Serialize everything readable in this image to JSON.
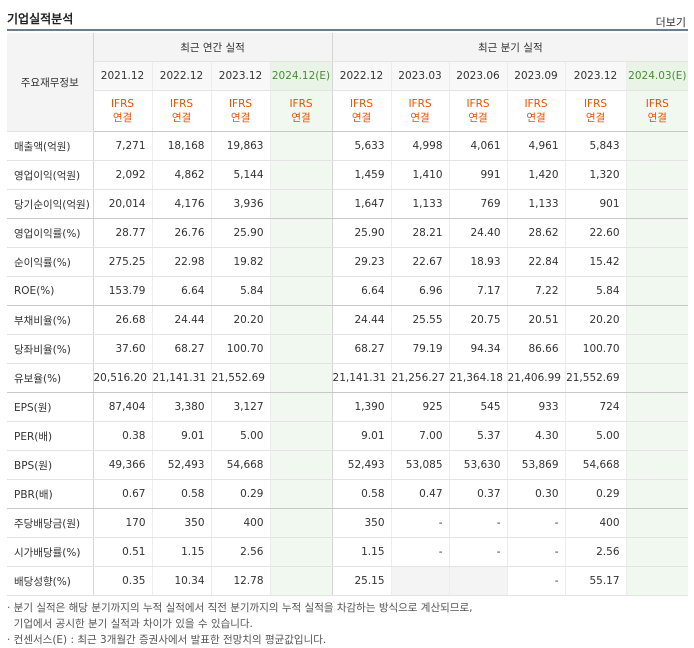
{
  "title": "기업실적분석",
  "more": "더보기",
  "header": {
    "row_label": "주요재무정보",
    "annual_group": "최근 연간 실적",
    "quarter_group": "최근 분기 실적",
    "annual_periods": [
      "2021.12",
      "2022.12",
      "2023.12",
      "2024.12(E)"
    ],
    "quarter_periods": [
      "2022.12",
      "2023.03",
      "2023.06",
      "2023.09",
      "2023.12",
      "2024.03(E)"
    ],
    "ifrs_top": "IFRS",
    "ifrs_bottom": "연결"
  },
  "rows": [
    {
      "label": "매출액(억원)",
      "annual": [
        "7,271",
        "18,168",
        "19,863",
        ""
      ],
      "quarter": [
        "5,633",
        "4,998",
        "4,061",
        "4,961",
        "5,843",
        ""
      ]
    },
    {
      "label": "영업이익(억원)",
      "annual": [
        "2,092",
        "4,862",
        "5,144",
        ""
      ],
      "quarter": [
        "1,459",
        "1,410",
        "991",
        "1,420",
        "1,320",
        ""
      ]
    },
    {
      "label": "당기순이익(억원)",
      "annual": [
        "20,014",
        "4,176",
        "3,936",
        ""
      ],
      "quarter": [
        "1,647",
        "1,133",
        "769",
        "1,133",
        "901",
        ""
      ]
    },
    {
      "label": "영업이익률(%)",
      "annual": [
        "28.77",
        "26.76",
        "25.90",
        ""
      ],
      "quarter": [
        "25.90",
        "28.21",
        "24.40",
        "28.62",
        "22.60",
        ""
      ]
    },
    {
      "label": "순이익률(%)",
      "annual": [
        "275.25",
        "22.98",
        "19.82",
        ""
      ],
      "quarter": [
        "29.23",
        "22.67",
        "18.93",
        "22.84",
        "15.42",
        ""
      ]
    },
    {
      "label": "ROE(%)",
      "annual": [
        "153.79",
        "6.64",
        "5.84",
        ""
      ],
      "quarter": [
        "6.64",
        "6.96",
        "7.17",
        "7.22",
        "5.84",
        ""
      ]
    },
    {
      "label": "부채비율(%)",
      "annual": [
        "26.68",
        "24.44",
        "20.20",
        ""
      ],
      "quarter": [
        "24.44",
        "25.55",
        "20.75",
        "20.51",
        "20.20",
        ""
      ]
    },
    {
      "label": "당좌비율(%)",
      "annual": [
        "37.60",
        "68.27",
        "100.70",
        ""
      ],
      "quarter": [
        "68.27",
        "79.19",
        "94.34",
        "86.66",
        "100.70",
        ""
      ]
    },
    {
      "label": "유보율(%)",
      "annual": [
        "20,516.20",
        "21,141.31",
        "21,552.69",
        ""
      ],
      "quarter": [
        "21,141.31",
        "21,256.27",
        "21,364.18",
        "21,406.99",
        "21,552.69",
        ""
      ]
    },
    {
      "label": "EPS(원)",
      "annual": [
        "87,404",
        "3,380",
        "3,127",
        ""
      ],
      "quarter": [
        "1,390",
        "925",
        "545",
        "933",
        "724",
        ""
      ]
    },
    {
      "label": "PER(배)",
      "annual": [
        "0.38",
        "9.01",
        "5.00",
        ""
      ],
      "quarter": [
        "9.01",
        "7.00",
        "5.37",
        "4.30",
        "5.00",
        ""
      ]
    },
    {
      "label": "BPS(원)",
      "annual": [
        "49,366",
        "52,493",
        "54,668",
        ""
      ],
      "quarter": [
        "52,493",
        "53,085",
        "53,630",
        "53,869",
        "54,668",
        ""
      ]
    },
    {
      "label": "PBR(배)",
      "annual": [
        "0.67",
        "0.58",
        "0.29",
        ""
      ],
      "quarter": [
        "0.58",
        "0.47",
        "0.37",
        "0.30",
        "0.29",
        ""
      ]
    },
    {
      "label": "주당배당금(원)",
      "annual": [
        "170",
        "350",
        "400",
        ""
      ],
      "quarter": [
        "350",
        "-",
        "-",
        "-",
        "400",
        ""
      ]
    },
    {
      "label": "시가배당률(%)",
      "annual": [
        "0.51",
        "1.15",
        "2.56",
        ""
      ],
      "quarter": [
        "1.15",
        "-",
        "-",
        "-",
        "2.56",
        ""
      ]
    },
    {
      "label": "배당성향(%)",
      "annual": [
        "0.35",
        "10.34",
        "12.78",
        ""
      ],
      "quarter": [
        "25.15",
        "",
        "",
        "-",
        "55.17",
        ""
      ]
    }
  ],
  "notes": [
    "· 분기 실적은 해당 분기까지의 누적 실적에서 직전 분기까지의 누적 실적을 차감하는 방식으로 계산되므로,",
    "  기업에서 공시한 분기 실적과 차이가 있을 수 있습니다.",
    "· 컨센서스(E) : 최근 3개월간 증권사에서 발표한 전망치의 평균값입니다."
  ]
}
